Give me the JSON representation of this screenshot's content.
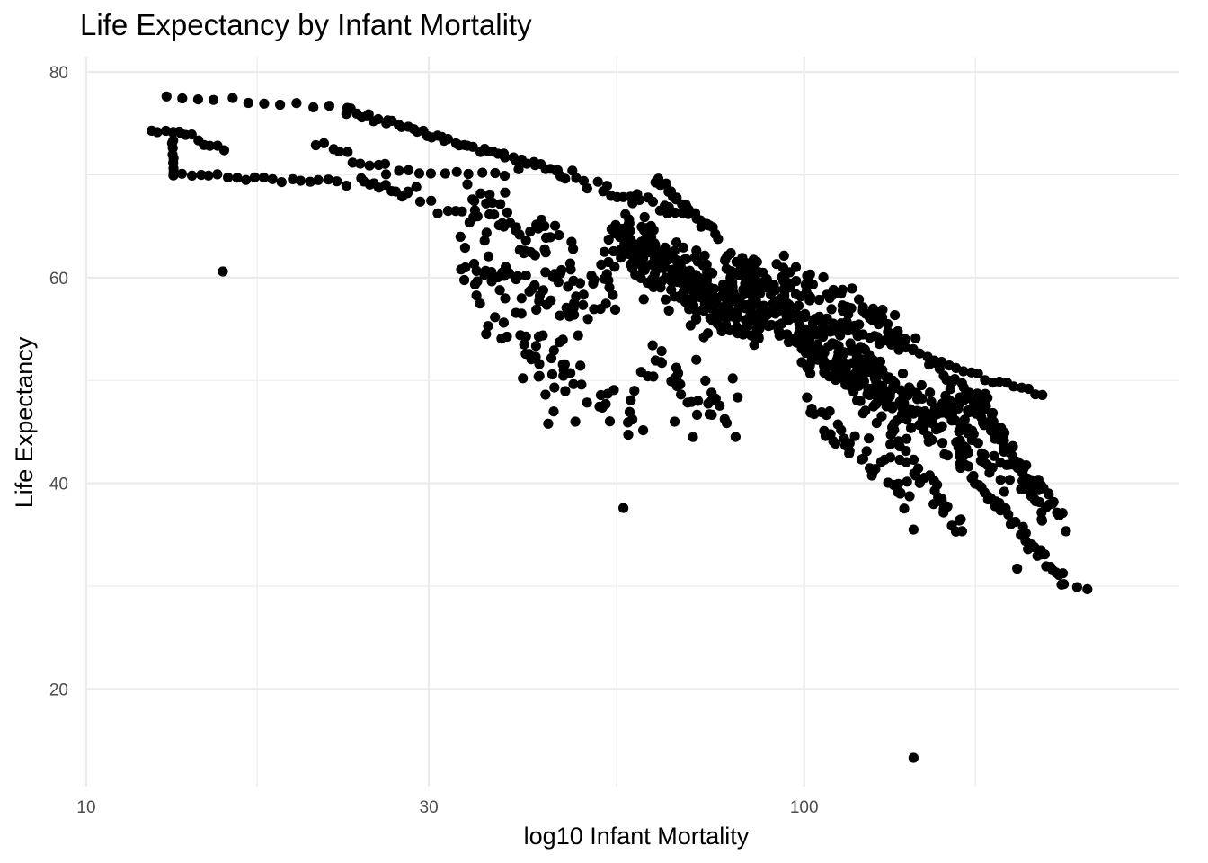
{
  "chart_data": {
    "type": "scatter",
    "title": "Life Expectancy by Infant Mortality",
    "xlabel": "log10 Infant Mortality",
    "ylabel": "Life Expectancy",
    "x_scale": "log10",
    "xlim": [
      10,
      333
    ],
    "ylim": [
      10.5,
      81.5
    ],
    "x_ticks": [
      10,
      30,
      100
    ],
    "x_tick_labels": [
      "10",
      "30",
      "100"
    ],
    "x_minor": [
      17.3,
      54.8,
      173.2
    ],
    "y_ticks": [
      20,
      40,
      60,
      80
    ],
    "y_tick_labels": [
      "20",
      "40",
      "60",
      "80"
    ],
    "y_minor": [
      30,
      50,
      70
    ],
    "grid": true,
    "point_color": "#000000",
    "clusters": [
      {
        "from": [
          12.9,
          77.6
        ],
        "to": [
          23,
          76.5
        ],
        "n": 12,
        "spread": [
          0.2,
          0.2
        ]
      },
      {
        "from": [
          23,
          76.2
        ],
        "to": [
          45,
          70.5
        ],
        "n": 45,
        "spread": [
          0.3,
          0.35
        ]
      },
      {
        "from": [
          45,
          70.5
        ],
        "to": [
          70,
          66
        ],
        "n": 25,
        "spread": [
          0.3,
          0.5
        ]
      },
      {
        "from": [
          12.3,
          74.2
        ],
        "to": [
          13.5,
          74.2
        ],
        "n": 5,
        "spread": [
          0.2,
          0.2
        ]
      },
      {
        "from": [
          13.5,
          74.2
        ],
        "to": [
          15.5,
          72.3
        ],
        "n": 8,
        "spread": [
          0.2,
          0.3
        ]
      },
      {
        "from": [
          13.2,
          74.0
        ],
        "to": [
          13.2,
          70.0
        ],
        "n": 9,
        "spread": [
          0.1,
          0.2
        ]
      },
      {
        "from": [
          13.2,
          70.0
        ],
        "to": [
          23,
          69.2
        ],
        "n": 20,
        "spread": [
          0.2,
          0.3
        ]
      },
      {
        "from": [
          21,
          73.0
        ],
        "to": [
          26,
          70.5
        ],
        "n": 10,
        "spread": [
          0.3,
          0.5
        ]
      },
      {
        "from": [
          26,
          70.2
        ],
        "to": [
          40,
          70.2
        ],
        "n": 12,
        "spread": [
          0.3,
          0.3
        ]
      },
      {
        "from": [
          24,
          69.5
        ],
        "to": [
          28,
          68.0
        ],
        "n": 10,
        "spread": [
          0.3,
          0.5
        ]
      },
      {
        "from": [
          28,
          68.5
        ],
        "to": [
          40,
          64.0
        ],
        "n": 15,
        "spread": [
          0.5,
          0.8
        ]
      },
      {
        "from": [
          34,
          68.0
        ],
        "to": [
          55,
          58.0
        ],
        "n": 60,
        "spread": [
          1.5,
          3.0
        ]
      },
      {
        "from": [
          33,
          61.5
        ],
        "to": [
          50,
          57.0
        ],
        "n": 50,
        "spread": [
          1.0,
          2.0
        ]
      },
      {
        "from": [
          35,
          57.0
        ],
        "to": [
          48,
          52.0
        ],
        "n": 25,
        "spread": [
          1.0,
          2.5
        ]
      },
      {
        "from": [
          40,
          52.0
        ],
        "to": [
          60,
          47.0
        ],
        "n": 30,
        "spread": [
          1.5,
          3.0
        ]
      },
      {
        "from": [
          55,
          64.0
        ],
        "to": [
          85,
          56.0
        ],
        "n": 260,
        "spread": [
          2.0,
          3.0
        ]
      },
      {
        "from": [
          62,
          69.8
        ],
        "to": [
          76,
          64.0
        ],
        "n": 25,
        "spread": [
          0.2,
          0.4
        ]
      },
      {
        "from": [
          60,
          52.0
        ],
        "to": [
          80,
          46.0
        ],
        "n": 35,
        "spread": [
          2.0,
          2.5
        ]
      },
      {
        "from": [
          80,
          60.0
        ],
        "to": [
          125,
          50.0
        ],
        "n": 280,
        "spread": [
          2.0,
          2.8
        ]
      },
      {
        "from": [
          95,
          60.5
        ],
        "to": [
          140,
          54.0
        ],
        "n": 60,
        "spread": [
          1.5,
          1.5
        ]
      },
      {
        "from": [
          105,
          56.0
        ],
        "to": [
          215,
          48.4
        ],
        "n": 32,
        "spread": [
          0.1,
          0.3
        ]
      },
      {
        "from": [
          120,
          50.0
        ],
        "to": [
          170,
          45.0
        ],
        "n": 110,
        "spread": [
          2.0,
          2.5
        ]
      },
      {
        "from": [
          100,
          48.0
        ],
        "to": [
          140,
          38.5
        ],
        "n": 40,
        "spread": [
          1.2,
          1.5
        ]
      },
      {
        "from": [
          130,
          46.0
        ],
        "to": [
          165,
          35.5
        ],
        "n": 35,
        "spread": [
          0.8,
          1.0
        ]
      },
      {
        "from": [
          150,
          52.0
        ],
        "to": [
          220,
          38.5
        ],
        "n": 40,
        "spread": [
          0.5,
          0.8
        ]
      },
      {
        "from": [
          165,
          50.0
        ],
        "to": [
          230,
          36.0
        ],
        "n": 40,
        "spread": [
          0.6,
          1.0
        ]
      },
      {
        "from": [
          175,
          49.0
        ],
        "to": [
          215,
          36.5
        ],
        "n": 30,
        "spread": [
          0.5,
          0.8
        ]
      },
      {
        "from": [
          165,
          42.0
        ],
        "to": [
          230,
          30.5
        ],
        "n": 40,
        "spread": [
          0.3,
          0.5
        ]
      },
      {
        "from": [
          140,
          48.0
        ],
        "to": [
          200,
          40.0
        ],
        "n": 40,
        "spread": [
          1.5,
          1.5
        ]
      }
    ],
    "points": [
      [
        15.5,
        60.6
      ],
      [
        56,
        37.6
      ],
      [
        142,
        13.3
      ],
      [
        230,
        30.2
      ],
      [
        240,
        29.9
      ],
      [
        248,
        29.7
      ],
      [
        198,
        31.7
      ],
      [
        205,
        33.6
      ],
      [
        142,
        35.5
      ],
      [
        66,
        46
      ],
      [
        58,
        49
      ],
      [
        48,
        46
      ],
      [
        44,
        45.8
      ],
      [
        70,
        44.5
      ]
    ]
  }
}
